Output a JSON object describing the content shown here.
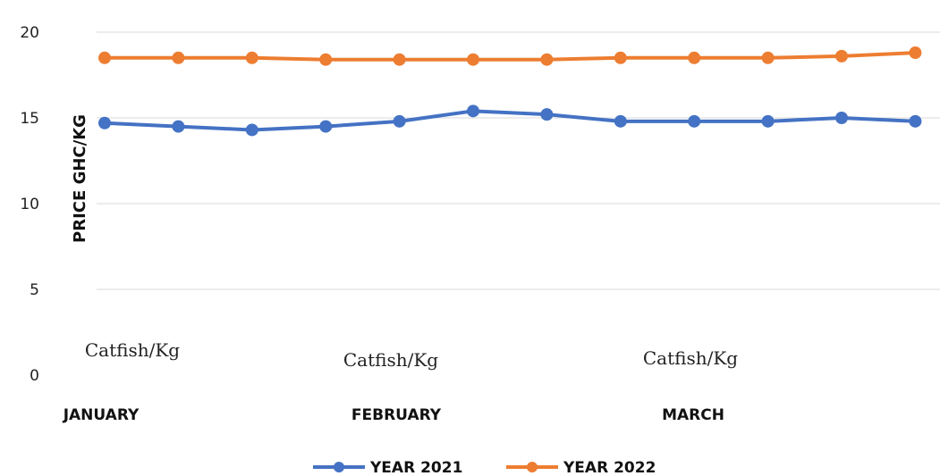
{
  "chart_data": {
    "type": "line",
    "title": "",
    "xlabel": "",
    "ylabel": "PRICE GHC/KG",
    "ylim": [
      0,
      20
    ],
    "yticks": [
      0,
      5,
      10,
      15,
      20
    ],
    "grid": "horizontal",
    "legend_position": "bottom",
    "x_category_labels": [
      "Catfish/Kg",
      "Catfish/Kg",
      "Catfish/Kg"
    ],
    "x_group_labels": [
      "JANUARY",
      "FEBRUARY",
      "MARCH"
    ],
    "series": [
      {
        "name": "YEAR 2021",
        "color": "#4472C4",
        "values": [
          14.7,
          14.5,
          14.3,
          14.5,
          14.8,
          15.4,
          15.2,
          14.8,
          14.8,
          14.8,
          15.0,
          14.8
        ]
      },
      {
        "name": "YEAR 2022",
        "color": "#ED7D31",
        "values": [
          18.5,
          18.5,
          18.5,
          18.4,
          18.4,
          18.4,
          18.4,
          18.5,
          18.5,
          18.5,
          18.6,
          18.8
        ]
      }
    ]
  }
}
